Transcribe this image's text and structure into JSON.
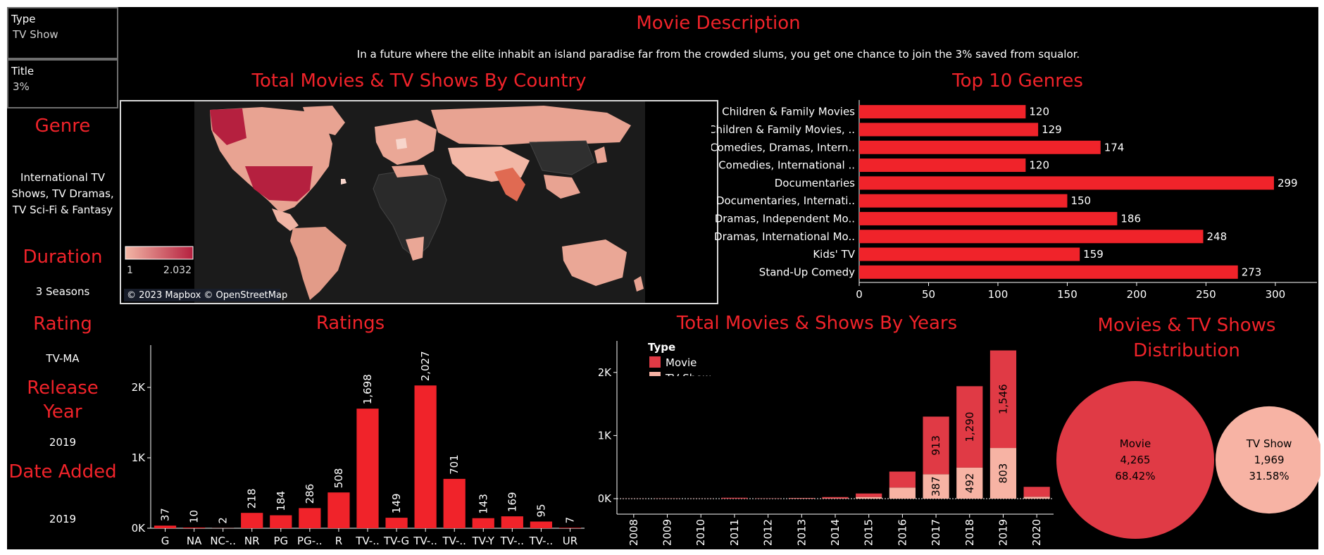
{
  "filters": {
    "type": {
      "label": "Type",
      "value": "TV Show"
    },
    "title": {
      "label": "Title",
      "value": "3%"
    }
  },
  "sidebar": {
    "genre": {
      "title": "Genre",
      "value_lines": [
        "International TV",
        "Shows, TV Dramas,",
        "TV Sci-Fi & Fantasy"
      ]
    },
    "duration": {
      "title": "Duration",
      "value": "3 Seasons"
    },
    "rating": {
      "title": "Rating",
      "value": "TV-MA"
    },
    "release_year": {
      "title_lines": [
        "Release",
        "Year"
      ],
      "value": "2019"
    },
    "date_added": {
      "title": "Date Added",
      "value": "2019"
    }
  },
  "description": {
    "title": "Movie Description",
    "text": "In a future where the elite inhabit an island paradise far from the crowded slums, you get one chance to join the 3% saved from squalor."
  },
  "map": {
    "title": "Total Movies & TV Shows By Country",
    "legend_min": "1",
    "legend_max": "2.032",
    "attribution": "© 2023 Mapbox © OpenStreetMap",
    "colors": {
      "ocean": "#1b1b1b",
      "land_none": "#2a2a2a",
      "low": "#f2b7a6",
      "high": "#b5203f"
    }
  },
  "colors": {
    "accent": "#f0232a",
    "movie": "#e03a45",
    "tv_show": "#f7b3a4"
  },
  "chart_data": [
    {
      "id": "genres",
      "type": "bar",
      "orientation": "horizontal",
      "title": "Top 10 Genres",
      "categories": [
        "Children & Family Movies",
        "Children & Family Movies, ..",
        "Comedies, Dramas, Intern..",
        "Comedies, International ..",
        "Documentaries",
        "Documentaries, Internati..",
        "Dramas, Independent Mo..",
        "Dramas, International Mo..",
        "Kids' TV",
        "Stand-Up Comedy"
      ],
      "values": [
        120,
        129,
        174,
        120,
        299,
        150,
        186,
        248,
        159,
        273
      ],
      "xlim": [
        0,
        330
      ],
      "x_ticks": [
        0,
        50,
        100,
        150,
        200,
        250,
        300
      ]
    },
    {
      "id": "ratings",
      "type": "bar",
      "title": "Ratings",
      "categories": [
        "G",
        "NA",
        "NC-..",
        "NR",
        "PG",
        "PG-..",
        "R",
        "TV-..",
        "TV-G",
        "TV-..",
        "TV-..",
        "TV-Y",
        "TV-..",
        "TV-..",
        "UR"
      ],
      "values": [
        37,
        10,
        2,
        218,
        184,
        286,
        508,
        1698,
        149,
        2027,
        701,
        143,
        169,
        95,
        7
      ],
      "value_labels": [
        "37",
        "10",
        "2",
        "218",
        "184",
        "286",
        "508",
        "1,698",
        "149",
        "2,027",
        "701",
        "143",
        "169",
        "95",
        "7"
      ],
      "ylim": [
        0,
        2600
      ],
      "y_ticks": [
        {
          "v": 0,
          "label": "0K"
        },
        {
          "v": 1000,
          "label": "1K"
        },
        {
          "v": 2000,
          "label": "2K"
        }
      ]
    },
    {
      "id": "years",
      "type": "bar",
      "stacked": true,
      "title": "Total Movies & Shows By Years",
      "legend": {
        "title": "Type",
        "items": [
          "Movie",
          "TV Show"
        ]
      },
      "categories": [
        "2008",
        "2009",
        "2010",
        "2011",
        "2012",
        "2013",
        "2014",
        "2015",
        "2016",
        "2017",
        "2018",
        "2019",
        "2020"
      ],
      "series": [
        {
          "name": "TV Show",
          "values": [
            1,
            2,
            1,
            1,
            3,
            5,
            6,
            26,
            176,
            387,
            492,
            803,
            30
          ]
        },
        {
          "name": "Movie",
          "values": [
            1,
            2,
            1,
            13,
            3,
            6,
            19,
            56,
            253,
            913,
            1290,
            1546,
            157
          ]
        }
      ],
      "labels": [
        {
          "category": "2017",
          "series": "TV Show",
          "text": "387"
        },
        {
          "category": "2017",
          "series": "Movie",
          "text": "913"
        },
        {
          "category": "2018",
          "series": "TV Show",
          "text": "492"
        },
        {
          "category": "2018",
          "series": "Movie",
          "text": "1,290"
        },
        {
          "category": "2019",
          "series": "TV Show",
          "text": "803"
        },
        {
          "category": "2019",
          "series": "Movie",
          "text": "1,546"
        }
      ],
      "ylim": [
        0,
        2500
      ],
      "y_ticks": [
        {
          "v": 0,
          "label": "0K"
        },
        {
          "v": 1000,
          "label": "1K"
        },
        {
          "v": 2000,
          "label": "2K"
        }
      ]
    },
    {
      "id": "distribution",
      "type": "pie",
      "title_lines": [
        "Movies & TV Shows",
        "Distribution"
      ],
      "slices": [
        {
          "label": "Movie",
          "count": "4,265",
          "percent": "68.42%",
          "value": 4265
        },
        {
          "label": "TV Show",
          "count": "1,969",
          "percent": "31.58%",
          "value": 1969
        }
      ]
    }
  ]
}
